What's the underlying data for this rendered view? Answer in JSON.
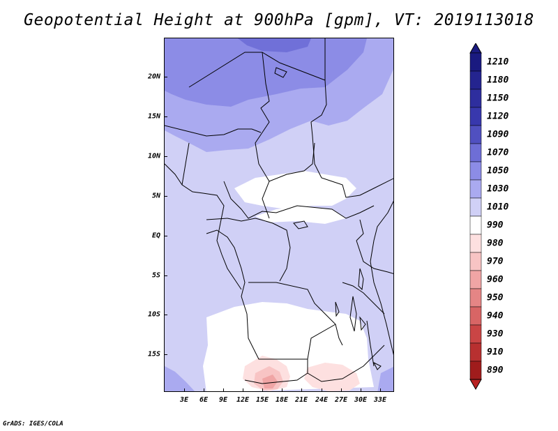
{
  "title": "Geopotential Height at 900hPa [gpm], VT: 2019113018",
  "credit": "GrADS: IGES/COLA",
  "map": {
    "lat_labels": [
      "20N",
      "15N",
      "10N",
      "5N",
      "EQ",
      "5S",
      "10S",
      "15S"
    ],
    "lon_labels": [
      "3E",
      "6E",
      "9E",
      "12E",
      "15E",
      "18E",
      "21E",
      "24E",
      "27E",
      "30E",
      "33E"
    ]
  },
  "colorbar": {
    "levels": [
      {
        "label": "1210",
        "color": "#1a1a80"
      },
      {
        "label": "1180",
        "color": "#24248f"
      },
      {
        "label": "1150",
        "color": "#2e2e9e"
      },
      {
        "label": "1120",
        "color": "#3838ad"
      },
      {
        "label": "1090",
        "color": "#5050c0"
      },
      {
        "label": "1070",
        "color": "#6e6ed6"
      },
      {
        "label": "1050",
        "color": "#8c8ce6"
      },
      {
        "label": "1030",
        "color": "#aaaaf0"
      },
      {
        "label": "1010",
        "color": "#d0d0f6"
      },
      {
        "label": "990",
        "color": "#ffffff"
      },
      {
        "label": "980",
        "color": "#fde0e0"
      },
      {
        "label": "970",
        "color": "#f8c4c4"
      },
      {
        "label": "960",
        "color": "#f0a5a5"
      },
      {
        "label": "950",
        "color": "#e58585"
      },
      {
        "label": "940",
        "color": "#d86565"
      },
      {
        "label": "930",
        "color": "#ca4545"
      },
      {
        "label": "910",
        "color": "#b83030"
      },
      {
        "label": "890",
        "color": "#a01c1c"
      }
    ],
    "top_arrow_color": "#1a1a80",
    "bottom_arrow_color": "#b82222"
  },
  "chart_data": {
    "type": "heatmap",
    "title": "Geopotential Height at 900hPa [gpm], VT: 2019113018",
    "variable": "Geopotential Height",
    "level": "900hPa",
    "units": "gpm",
    "valid_time": "2019113018",
    "lon_range": [
      0,
      35
    ],
    "lat_range": [
      -18,
      24
    ],
    "contour_levels": [
      890,
      910,
      930,
      940,
      950,
      960,
      970,
      980,
      990,
      1010,
      1030,
      1050,
      1070,
      1090,
      1120,
      1150,
      1180,
      1210
    ],
    "colorbar_labels": [
      "1210",
      "1180",
      "1150",
      "1120",
      "1090",
      "1070",
      "1050",
      "1030",
      "1010",
      "990",
      "980",
      "970",
      "960",
      "950",
      "940",
      "930",
      "910",
      "890"
    ],
    "xlabel": "",
    "ylabel": ""
  }
}
